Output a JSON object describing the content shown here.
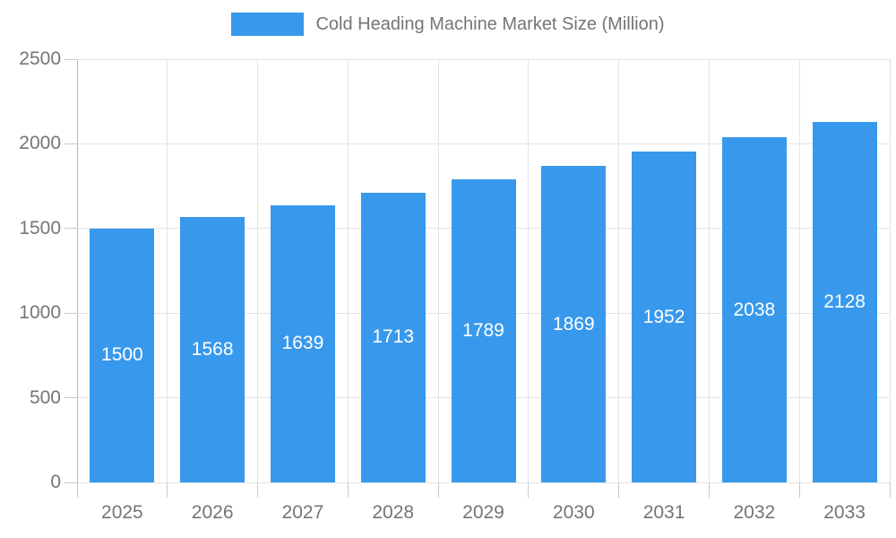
{
  "chart_data": {
    "type": "bar",
    "title": "Cold Heading Machine Market Size (Million)",
    "categories": [
      "2025",
      "2026",
      "2027",
      "2028",
      "2029",
      "2030",
      "2031",
      "2032",
      "2033"
    ],
    "values": [
      1500,
      1568,
      1639,
      1713,
      1789,
      1869,
      1952,
      2038,
      2128
    ],
    "xlabel": "",
    "ylabel": "",
    "ylim": [
      0,
      2500
    ],
    "ytick_interval": 500,
    "ytick_labels": [
      "0",
      "500",
      "1000",
      "1500",
      "2000",
      "2500"
    ],
    "legend_position": "top",
    "grid": true,
    "value_labels_inside_bars": true,
    "colors": {
      "bar": "#3899ec",
      "bar_value_label": "#ffffff",
      "axis_text": "#757575",
      "gridline": "#e3e3e3",
      "axis_line": "#b5b5b5",
      "tick": "#c9c9c9",
      "background": "#ffffff"
    }
  }
}
